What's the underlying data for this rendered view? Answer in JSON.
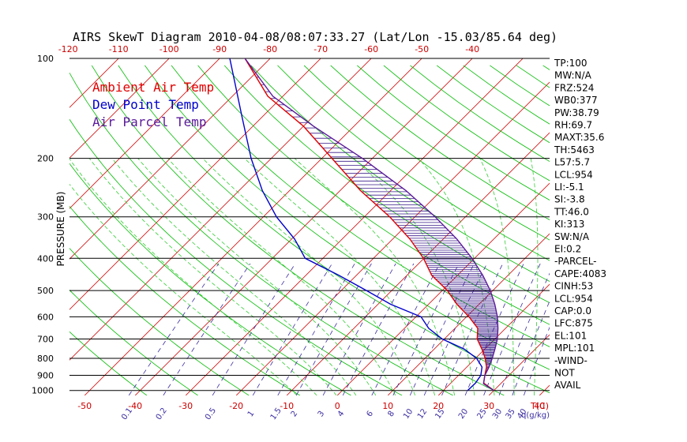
{
  "chart_data": {
    "type": "skew-t",
    "title": "AIRS SkewT Diagram 2010-04-08/08:07:33.27 (Lat/Lon -15.03/85.64 deg)",
    "ylabel": "PRESSURE (MB)",
    "xlabel_unit": "T(C)",
    "mixing_ratio_unit": "q(g/kg)",
    "pressure_ticks": [
      100,
      200,
      300,
      400,
      500,
      600,
      700,
      800,
      900,
      1000
    ],
    "temp_ticks_top": [
      -120,
      -110,
      -100,
      -90,
      -80,
      -70,
      -60,
      -50,
      -40
    ],
    "temp_ticks_bottom": [
      -50,
      -40,
      -30,
      -20,
      -10,
      0,
      10,
      20,
      30,
      40
    ],
    "mixing_ratio_ticks": [
      "0.1",
      "0.2",
      "0.5",
      "1",
      "1.5",
      "2",
      "3",
      "4",
      "6",
      "8",
      "10",
      "12",
      "15",
      "20",
      "25",
      "30",
      "35",
      "40"
    ],
    "legend": [
      {
        "name": "Ambient Air Temp",
        "color": "#e00000"
      },
      {
        "name": "Dew Point Temp",
        "color": "#0000cc"
      },
      {
        "name": "Air Parcel Temp",
        "color": "#5a1a9a"
      }
    ],
    "series": [
      {
        "name": "Ambient Air Temp",
        "color": "#e00000",
        "points": [
          [
            1000,
            30
          ],
          [
            950,
            26.5
          ],
          [
            900,
            25.2
          ],
          [
            850,
            23.9
          ],
          [
            800,
            21.9
          ],
          [
            750,
            19.4
          ],
          [
            700,
            16.5
          ],
          [
            650,
            14.5
          ],
          [
            600,
            10.5
          ],
          [
            550,
            5.6
          ],
          [
            500,
            1.0
          ],
          [
            450,
            -5.1
          ],
          [
            400,
            -10.1
          ],
          [
            350,
            -16.6
          ],
          [
            300,
            -25.0
          ],
          [
            250,
            -36.0
          ],
          [
            200,
            -48.0
          ],
          [
            160,
            -60.0
          ],
          [
            130,
            -73.0
          ],
          [
            100,
            -85.0
          ]
        ]
      },
      {
        "name": "Dew Point Temp",
        "color": "#0000cc",
        "points": [
          [
            1000,
            24.8
          ],
          [
            950,
            24.9
          ],
          [
            900,
            24.4
          ],
          [
            850,
            23.0
          ],
          [
            800,
            20.2
          ],
          [
            750,
            15.9
          ],
          [
            700,
            9.6
          ],
          [
            650,
            4.8
          ],
          [
            600,
            1.0
          ],
          [
            550,
            -7.5
          ],
          [
            500,
            -15.0
          ],
          [
            450,
            -23.5
          ],
          [
            400,
            -33.5
          ],
          [
            350,
            -39.4
          ],
          [
            300,
            -47.4
          ],
          [
            250,
            -55.4
          ],
          [
            200,
            -64.0
          ],
          [
            150,
            -74.0
          ],
          [
            100,
            -88.0
          ]
        ]
      },
      {
        "name": "Air Parcel Temp",
        "color": "#5a1a9a",
        "points": [
          [
            1000,
            30
          ],
          [
            954,
            26.6
          ],
          [
            900,
            25.2
          ],
          [
            850,
            24.4
          ],
          [
            800,
            23.3
          ],
          [
            750,
            22.0
          ],
          [
            700,
            20.5
          ],
          [
            650,
            18.5
          ],
          [
            600,
            16.1
          ],
          [
            550,
            13.1
          ],
          [
            500,
            9.5
          ],
          [
            450,
            5.0
          ],
          [
            400,
            -0.5
          ],
          [
            350,
            -7.3
          ],
          [
            300,
            -16.0
          ],
          [
            250,
            -27.0
          ],
          [
            200,
            -42.0
          ],
          [
            160,
            -58.0
          ],
          [
            130,
            -72.0
          ],
          [
            100,
            -85.0
          ]
        ]
      }
    ],
    "axes": {
      "pmin": 100,
      "pmax": 1035,
      "tmin_at_bottom": -53,
      "tmax_at_bottom": 42,
      "skew": "45deg"
    }
  },
  "indices": [
    "TP:100",
    "MW:N/A",
    "FRZ:524",
    "WB0:377",
    "PW:38.79",
    "RH:69.7",
    "MAXT:35.6",
    "TH:5463",
    "L57:5.7",
    "LCL:954",
    "LI:-5.1",
    "SI:-3.8",
    "TT:46.0",
    "KI:313",
    "SW:N/A",
    "EI:0.2",
    "-PARCEL-",
    "CAPE:4083",
    "CINH:53",
    "LCL:954",
    "CAP:0.0",
    "LFC:875",
    "EL:101",
    "MPL:101",
    "-WIND-",
    "NOT",
    "AVAIL"
  ],
  "colors": {
    "isotherm": "#d00000",
    "dry_adiabat": "#00bb00",
    "moist_adiabat": "#33cc33",
    "mixing_ratio": "#3a2ca0",
    "isobar": "#000000",
    "cape_hatch": "#3a1a8a"
  }
}
